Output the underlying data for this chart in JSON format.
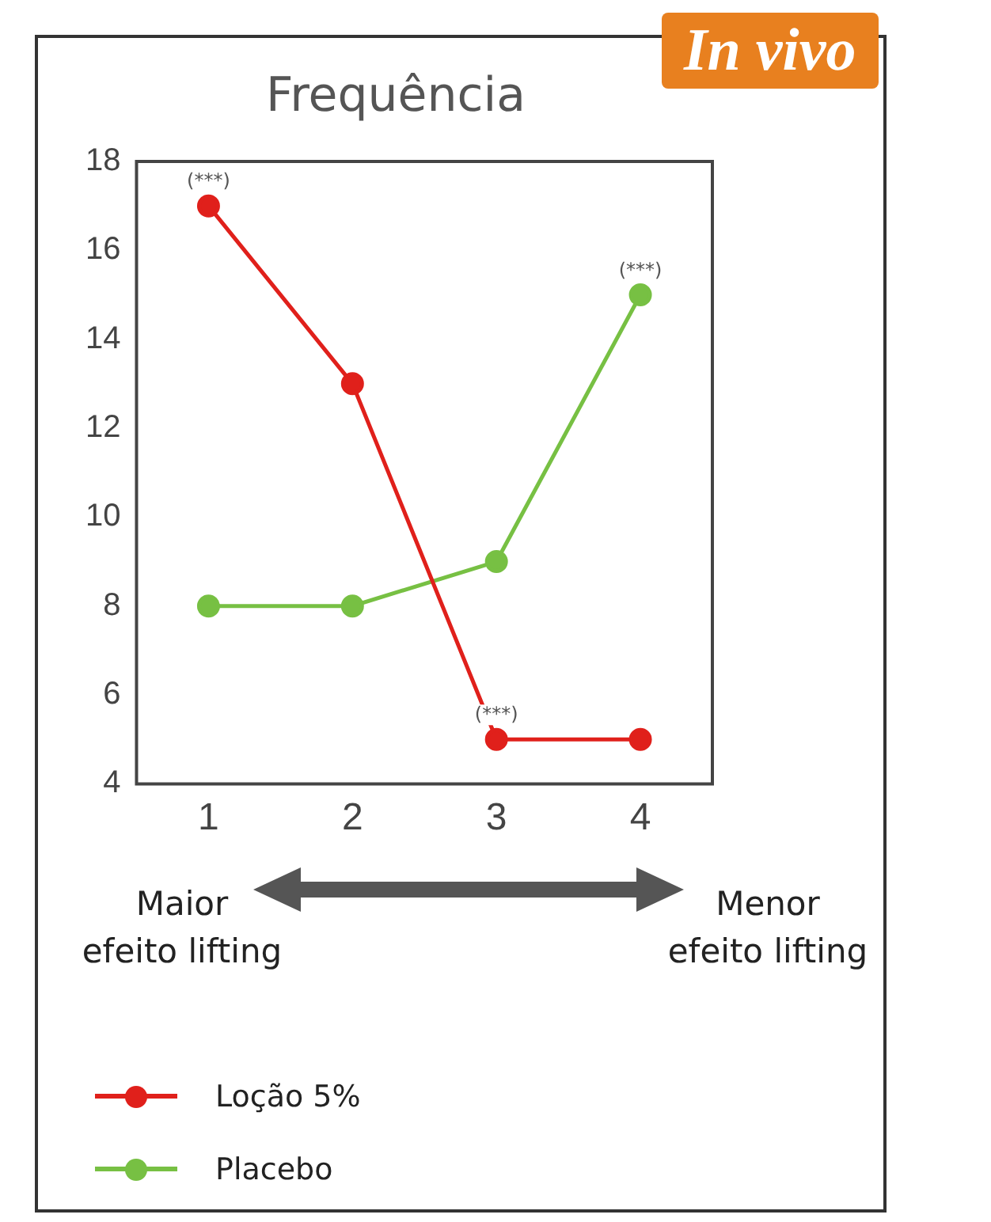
{
  "chart_data": {
    "type": "line",
    "title": "Frequência",
    "categories": [
      "1",
      "2",
      "3",
      "4"
    ],
    "series": [
      {
        "name": "Loção 5%",
        "color": "#e0201b",
        "values": [
          17,
          13,
          5,
          5
        ]
      },
      {
        "name": "Placebo",
        "color": "#77c043",
        "values": [
          8,
          8,
          9,
          15
        ]
      }
    ],
    "ylim": [
      4,
      18
    ],
    "yticks": [
      4,
      6,
      8,
      10,
      12,
      14,
      16,
      18
    ],
    "grid": false,
    "legend": "bottom",
    "marker": "circle",
    "line_style": "solid",
    "annotations": [
      "In vivo",
      "Maior efeito lifting",
      "Menor efeito lifting",
      {
        "text": "(***)",
        "x": "1",
        "y": 17
      },
      {
        "text": "(***)",
        "x": "4",
        "y": 15
      },
      {
        "text": "(***)",
        "x": "3",
        "y": 5
      }
    ]
  }
}
